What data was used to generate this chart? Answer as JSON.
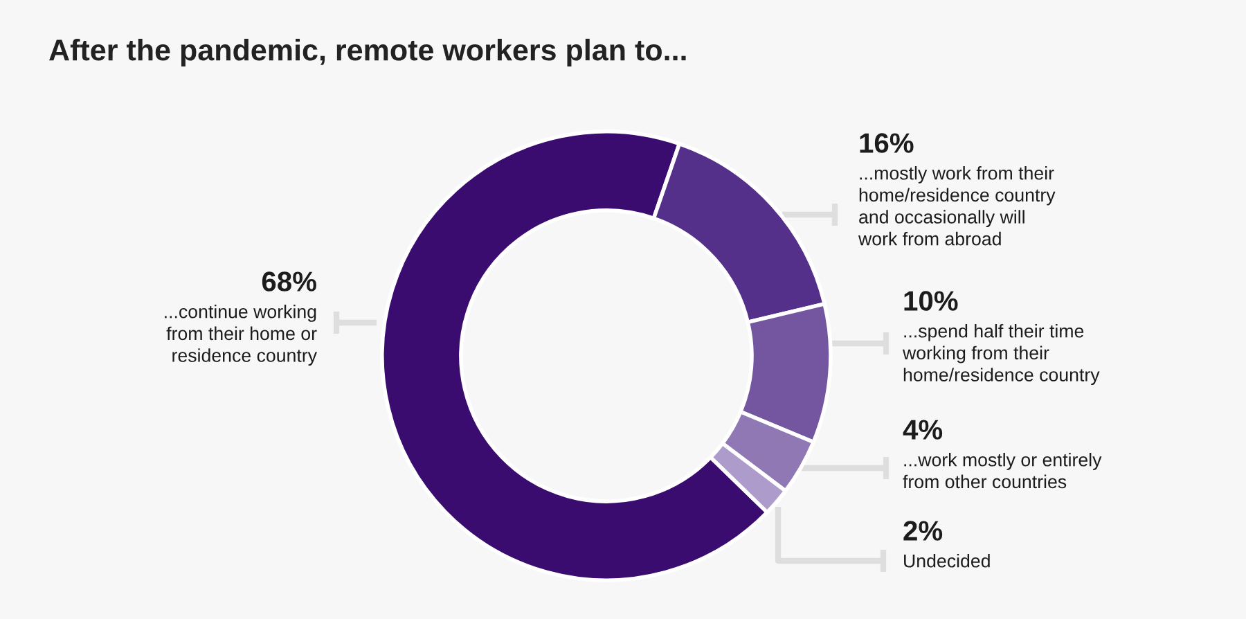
{
  "chart_data": {
    "type": "donut",
    "title": "After the pandemic, remote workers plan to...",
    "categories": [
      "...continue working\nfrom their home or\nresidence country",
      "...mostly work from their\nhome/residence country\nand occasionally will\nwork from abroad",
      "...spend half their time\nworking from their\nhome/residence country",
      "...work mostly or entirely\nfrom other countries",
      "Undecided"
    ],
    "values": [
      68,
      16,
      10,
      4,
      2
    ],
    "colors": [
      "#3a0c70",
      "#54308a",
      "#7355a0",
      "#8f78b3",
      "#ad9ccb"
    ],
    "value_labels": [
      "68%",
      "16%",
      "10%",
      "4%",
      "2%"
    ]
  }
}
